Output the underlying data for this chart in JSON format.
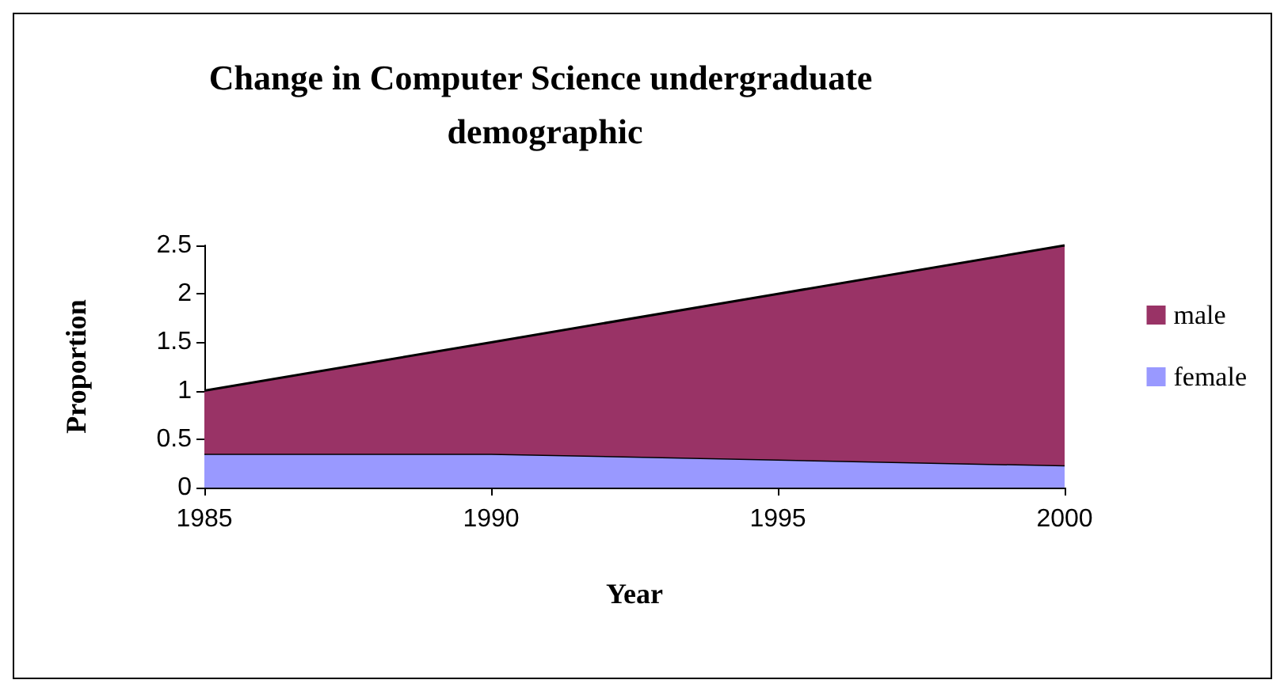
{
  "chart_data": {
    "type": "area",
    "title": "Change in Computer Science undergraduate demographic",
    "xlabel": "Year",
    "ylabel": "Proportion",
    "stacked": true,
    "x": [
      1985,
      1990,
      1995,
      2000
    ],
    "series": [
      {
        "name": "female",
        "color": "#9999ff",
        "values": [
          0.35,
          0.35,
          0.29,
          0.23
        ]
      },
      {
        "name": "male",
        "color": "#993366",
        "values": [
          0.65,
          1.15,
          1.71,
          2.27
        ]
      }
    ],
    "xlim": [
      1985,
      2000
    ],
    "xticks": [
      1985,
      1990,
      1995,
      2000
    ],
    "ylim": [
      0,
      2.5
    ],
    "yticks": [
      0,
      0.5,
      1,
      1.5,
      2,
      2.5
    ],
    "grid": false,
    "legend": "right"
  }
}
